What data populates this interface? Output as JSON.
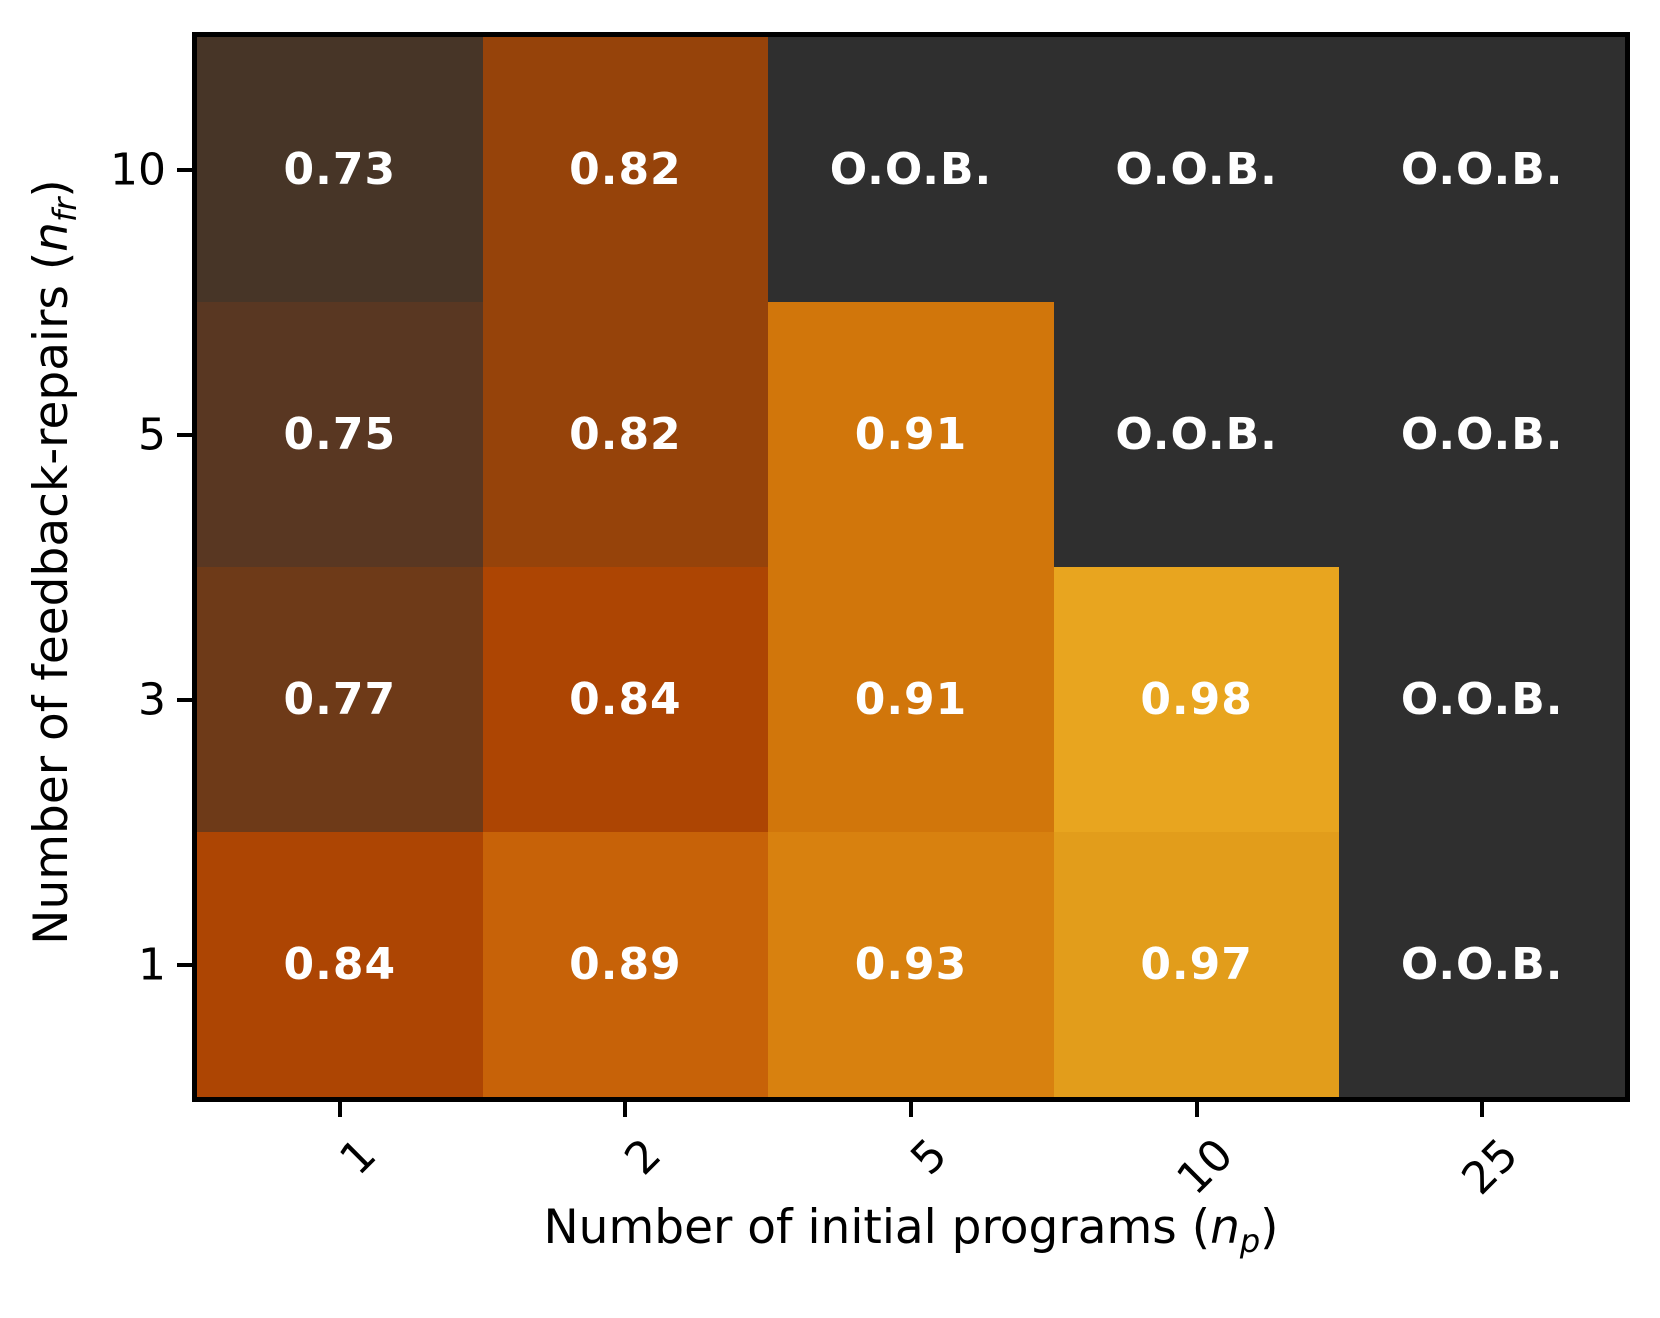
{
  "figure": {
    "background_color": "#ffffff",
    "plot_border_color": "#000000",
    "oob_color": "#2f2f2f",
    "annotation_text_color": "#ffffff"
  },
  "x_axis": {
    "title_prefix": "Number of initial programs (",
    "title_var": "n",
    "title_sub": "p",
    "title_suffix": ")",
    "tick_labels": [
      "1",
      "2",
      "5",
      "10",
      "25"
    ]
  },
  "y_axis": {
    "title_prefix": "Number of feedback-repairs (",
    "title_var": "n",
    "title_sub": "fr",
    "title_suffix": ")",
    "tick_labels": [
      "10",
      "5",
      "3",
      "1"
    ]
  },
  "chart_data": {
    "type": "heatmap",
    "xlabel": "Number of initial programs (n_p)",
    "ylabel": "Number of feedback-repairs (n_fr)",
    "x_categories": [
      1,
      2,
      5,
      10,
      25
    ],
    "y_categories": [
      10,
      5,
      3,
      1
    ],
    "oob_label": "O.O.B.",
    "legend_position": "none",
    "grid": false,
    "cells": [
      [
        {
          "label": "0.73",
          "value": 0.73,
          "oob": false,
          "color": "#473527"
        },
        {
          "label": "0.82",
          "value": 0.82,
          "oob": false,
          "color": "#96430a"
        },
        {
          "label": "O.O.B.",
          "value": null,
          "oob": true,
          "color": "#2f2f2f"
        },
        {
          "label": "O.O.B.",
          "value": null,
          "oob": true,
          "color": "#2f2f2f"
        },
        {
          "label": "O.O.B.",
          "value": null,
          "oob": true,
          "color": "#2f2f2f"
        }
      ],
      [
        {
          "label": "0.75",
          "value": 0.75,
          "oob": false,
          "color": "#593722"
        },
        {
          "label": "0.82",
          "value": 0.82,
          "oob": false,
          "color": "#96430a"
        },
        {
          "label": "0.91",
          "value": 0.91,
          "oob": false,
          "color": "#d1760b"
        },
        {
          "label": "O.O.B.",
          "value": null,
          "oob": true,
          "color": "#2f2f2f"
        },
        {
          "label": "O.O.B.",
          "value": null,
          "oob": true,
          "color": "#2f2f2f"
        }
      ],
      [
        {
          "label": "0.77",
          "value": 0.77,
          "oob": false,
          "color": "#6e3a18"
        },
        {
          "label": "0.84",
          "value": 0.84,
          "oob": false,
          "color": "#ad4503"
        },
        {
          "label": "0.91",
          "value": 0.91,
          "oob": false,
          "color": "#d1760b"
        },
        {
          "label": "0.98",
          "value": 0.98,
          "oob": false,
          "color": "#e8a51f"
        },
        {
          "label": "O.O.B.",
          "value": null,
          "oob": true,
          "color": "#2f2f2f"
        }
      ],
      [
        {
          "label": "0.84",
          "value": 0.84,
          "oob": false,
          "color": "#ad4503"
        },
        {
          "label": "0.89",
          "value": 0.89,
          "oob": false,
          "color": "#c76208"
        },
        {
          "label": "0.93",
          "value": 0.93,
          "oob": false,
          "color": "#d8810f"
        },
        {
          "label": "0.97",
          "value": 0.97,
          "oob": false,
          "color": "#e29d1b"
        },
        {
          "label": "O.O.B.",
          "value": null,
          "oob": true,
          "color": "#2f2f2f"
        }
      ]
    ]
  }
}
